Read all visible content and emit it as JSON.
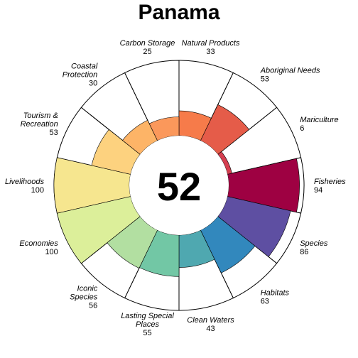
{
  "title": "Panama",
  "chart_data": {
    "type": "flower",
    "title": "Panama",
    "center_score": 52,
    "max_value": 100,
    "petals": [
      {
        "name": [
          "Natural Products"
        ],
        "value": 33,
        "color": "#f67b4a"
      },
      {
        "name": [
          "Aboriginal Needs"
        ],
        "value": 53,
        "color": "#e55c49"
      },
      {
        "name": [
          "Mariculture"
        ],
        "value": 6,
        "color": "#d53e4f"
      },
      {
        "name": [
          "Fisheries"
        ],
        "value": 94,
        "color": "#9e0142"
      },
      {
        "name": [
          "Species"
        ],
        "value": 86,
        "color": "#5e4fa2"
      },
      {
        "name": [
          "Habitats"
        ],
        "value": 63,
        "color": "#3288bd"
      },
      {
        "name": [
          "Clean Waters"
        ],
        "value": 43,
        "color": "#4fa8b0"
      },
      {
        "name": [
          "Lasting Special",
          "Places"
        ],
        "value": 55,
        "color": "#72c7a5"
      },
      {
        "name": [
          "Iconic",
          "Species"
        ],
        "value": 56,
        "color": "#b2dfa1"
      },
      {
        "name": [
          "Economies"
        ],
        "value": 100,
        "color": "#dcef9a"
      },
      {
        "name": [
          "Livelihoods"
        ],
        "value": 100,
        "color": "#f6e68f"
      },
      {
        "name": [
          "Tourism &",
          "Recreation"
        ],
        "value": 53,
        "color": "#fdd27f"
      },
      {
        "name": [
          "Coastal",
          "Protection"
        ],
        "value": 30,
        "color": "#fdb467"
      },
      {
        "name": [
          "Carbon Storage"
        ],
        "value": 25,
        "color": "#fb985b"
      }
    ]
  }
}
